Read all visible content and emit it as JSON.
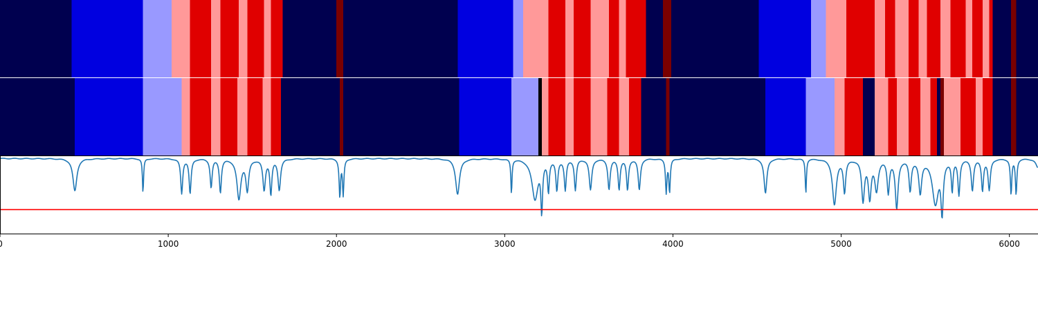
{
  "chart_data": {
    "type": "heatmap",
    "xlim": [
      0,
      6170
    ],
    "xticks": [
      0,
      1000,
      2000,
      3000,
      4000,
      5000,
      6000
    ],
    "xtick_labels": [
      "0",
      "1000",
      "2000",
      "3000",
      "4000",
      "5000",
      "6000"
    ],
    "palette": {
      "navy": "#00004f",
      "blue": "#0000e0",
      "lightblue": "#9999ff",
      "pink": "#ff9999",
      "red": "#e00000",
      "darkred": "#7a0000",
      "black": "#000000"
    },
    "rows": [
      {
        "segments": [
          [
            0,
            425,
            "navy"
          ],
          [
            425,
            850,
            "blue"
          ],
          [
            850,
            1020,
            "lightblue"
          ],
          [
            1020,
            1130,
            "pink"
          ],
          [
            1130,
            1255,
            "red"
          ],
          [
            1255,
            1310,
            "pink"
          ],
          [
            1310,
            1420,
            "red"
          ],
          [
            1420,
            1470,
            "pink"
          ],
          [
            1470,
            1570,
            "red"
          ],
          [
            1570,
            1610,
            "pink"
          ],
          [
            1610,
            1680,
            "red"
          ],
          [
            1680,
            2000,
            "navy"
          ],
          [
            2000,
            2040,
            "darkred"
          ],
          [
            2040,
            2720,
            "navy"
          ],
          [
            2720,
            3050,
            "blue"
          ],
          [
            3050,
            3110,
            "lightblue"
          ],
          [
            3110,
            3260,
            "pink"
          ],
          [
            3260,
            3360,
            "red"
          ],
          [
            3360,
            3410,
            "pink"
          ],
          [
            3410,
            3510,
            "red"
          ],
          [
            3510,
            3620,
            "pink"
          ],
          [
            3620,
            3680,
            "red"
          ],
          [
            3680,
            3720,
            "pink"
          ],
          [
            3720,
            3840,
            "red"
          ],
          [
            3840,
            3940,
            "navy"
          ],
          [
            3940,
            3990,
            "darkred"
          ],
          [
            3990,
            4510,
            "navy"
          ],
          [
            4510,
            4820,
            "blue"
          ],
          [
            4820,
            4910,
            "lightblue"
          ],
          [
            4910,
            5030,
            "pink"
          ],
          [
            5030,
            5200,
            "red"
          ],
          [
            5200,
            5260,
            "pink"
          ],
          [
            5260,
            5320,
            "red"
          ],
          [
            5320,
            5400,
            "pink"
          ],
          [
            5400,
            5460,
            "red"
          ],
          [
            5460,
            5510,
            "pink"
          ],
          [
            5510,
            5590,
            "red"
          ],
          [
            5590,
            5650,
            "pink"
          ],
          [
            5650,
            5740,
            "red"
          ],
          [
            5740,
            5780,
            "pink"
          ],
          [
            5780,
            5840,
            "red"
          ],
          [
            5840,
            5880,
            "pink"
          ],
          [
            5880,
            5900,
            "red"
          ],
          [
            5900,
            6010,
            "navy"
          ],
          [
            6010,
            6040,
            "darkred"
          ],
          [
            6040,
            6170,
            "navy"
          ]
        ]
      },
      {
        "segments": [
          [
            0,
            445,
            "navy"
          ],
          [
            445,
            850,
            "blue"
          ],
          [
            850,
            1080,
            "lightblue"
          ],
          [
            1080,
            1130,
            "pink"
          ],
          [
            1130,
            1255,
            "red"
          ],
          [
            1255,
            1310,
            "pink"
          ],
          [
            1310,
            1410,
            "red"
          ],
          [
            1410,
            1470,
            "pink"
          ],
          [
            1470,
            1560,
            "red"
          ],
          [
            1560,
            1610,
            "pink"
          ],
          [
            1610,
            1670,
            "red"
          ],
          [
            1670,
            2020,
            "navy"
          ],
          [
            2020,
            2040,
            "darkred"
          ],
          [
            2040,
            2730,
            "navy"
          ],
          [
            2730,
            3040,
            "blue"
          ],
          [
            3040,
            3200,
            "lightblue"
          ],
          [
            3200,
            3220,
            "black"
          ],
          [
            3220,
            3260,
            "pink"
          ],
          [
            3260,
            3360,
            "red"
          ],
          [
            3360,
            3410,
            "pink"
          ],
          [
            3410,
            3510,
            "red"
          ],
          [
            3510,
            3610,
            "pink"
          ],
          [
            3610,
            3680,
            "red"
          ],
          [
            3680,
            3740,
            "pink"
          ],
          [
            3740,
            3810,
            "red"
          ],
          [
            3810,
            3960,
            "navy"
          ],
          [
            3960,
            3980,
            "darkred"
          ],
          [
            3980,
            4550,
            "navy"
          ],
          [
            4550,
            4790,
            "blue"
          ],
          [
            4790,
            4960,
            "lightblue"
          ],
          [
            4960,
            5020,
            "pink"
          ],
          [
            5020,
            5130,
            "red"
          ],
          [
            5130,
            5200,
            "navy"
          ],
          [
            5200,
            5280,
            "pink"
          ],
          [
            5280,
            5330,
            "red"
          ],
          [
            5330,
            5400,
            "pink"
          ],
          [
            5400,
            5470,
            "red"
          ],
          [
            5470,
            5530,
            "pink"
          ],
          [
            5530,
            5570,
            "red"
          ],
          [
            5570,
            5590,
            "navy"
          ],
          [
            5590,
            5610,
            "darkred"
          ],
          [
            5610,
            5710,
            "pink"
          ],
          [
            5710,
            5800,
            "red"
          ],
          [
            5800,
            5840,
            "pink"
          ],
          [
            5840,
            5900,
            "red"
          ],
          [
            5900,
            6010,
            "navy"
          ],
          [
            6010,
            6040,
            "darkred"
          ],
          [
            6040,
            6170,
            "navy"
          ]
        ]
      }
    ],
    "line": {
      "color": "#1f77b4",
      "baseline": 0.97,
      "ylim": [
        0,
        1
      ],
      "dips": [
        [
          445,
          0.55,
          14
        ],
        [
          850,
          0.52,
          4
        ],
        [
          1080,
          0.52,
          7
        ],
        [
          1130,
          0.52,
          7
        ],
        [
          1255,
          0.6,
          7
        ],
        [
          1310,
          0.54,
          7
        ],
        [
          1420,
          0.45,
          14
        ],
        [
          1470,
          0.57,
          10
        ],
        [
          1570,
          0.57,
          9
        ],
        [
          1610,
          0.52,
          7
        ],
        [
          1660,
          0.57,
          9
        ],
        [
          2020,
          0.48,
          5
        ],
        [
          2040,
          0.5,
          5
        ],
        [
          2720,
          0.51,
          14
        ],
        [
          3040,
          0.52,
          4
        ],
        [
          3180,
          0.45,
          22
        ],
        [
          3220,
          0.35,
          6
        ],
        [
          3260,
          0.57,
          6
        ],
        [
          3310,
          0.57,
          7
        ],
        [
          3360,
          0.57,
          7
        ],
        [
          3420,
          0.57,
          7
        ],
        [
          3510,
          0.57,
          9
        ],
        [
          3620,
          0.58,
          8
        ],
        [
          3680,
          0.58,
          7
        ],
        [
          3730,
          0.57,
          7
        ],
        [
          3800,
          0.57,
          8
        ],
        [
          3960,
          0.54,
          5
        ],
        [
          3980,
          0.54,
          5
        ],
        [
          4550,
          0.52,
          10
        ],
        [
          4790,
          0.52,
          4
        ],
        [
          4960,
          0.38,
          14
        ],
        [
          5020,
          0.55,
          8
        ],
        [
          5130,
          0.44,
          10
        ],
        [
          5170,
          0.48,
          10
        ],
        [
          5210,
          0.58,
          12
        ],
        [
          5280,
          0.55,
          8
        ],
        [
          5330,
          0.34,
          10
        ],
        [
          5410,
          0.57,
          8
        ],
        [
          5470,
          0.54,
          10
        ],
        [
          5560,
          0.4,
          22
        ],
        [
          5600,
          0.33,
          8
        ],
        [
          5660,
          0.57,
          6
        ],
        [
          5700,
          0.52,
          7
        ],
        [
          5780,
          0.57,
          8
        ],
        [
          5840,
          0.57,
          7
        ],
        [
          5880,
          0.57,
          8
        ],
        [
          6010,
          0.51,
          5
        ],
        [
          6040,
          0.51,
          5
        ],
        [
          6170,
          0.85,
          15
        ]
      ]
    },
    "threshold": {
      "value": 0.31,
      "color": "#ff0000"
    }
  }
}
